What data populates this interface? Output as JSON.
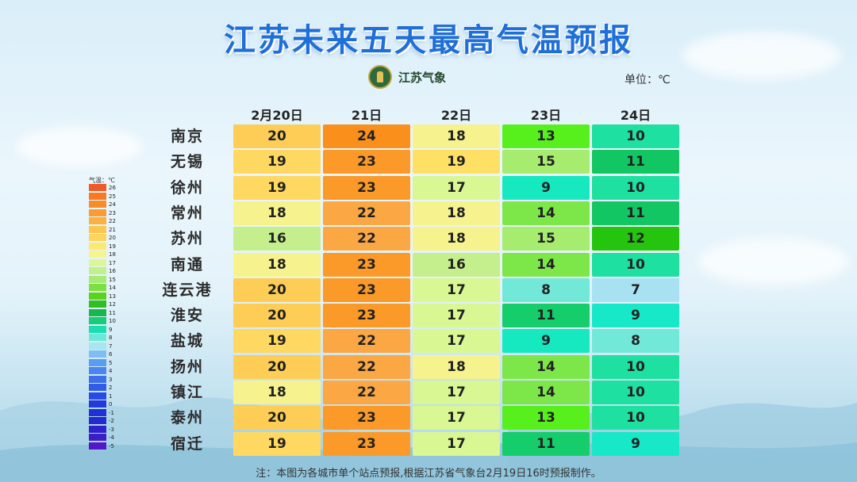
{
  "title": "江苏未来五天最高气温预报",
  "logo_text": "江苏气象",
  "unit_label": "单位：℃",
  "legend_title": "气温：℃",
  "note": "注：本图为各城市单个站点预报,根据江苏省气象台2月19日16时预报制作。",
  "colors": {
    "title": "#1f6fd8"
  },
  "chart_data": {
    "type": "heatmap",
    "title": "江苏未来五天最高气温预报",
    "unit": "℃",
    "columns": [
      "2月20日",
      "21日",
      "22日",
      "23日",
      "24日"
    ],
    "rows": [
      "南京",
      "无锡",
      "徐州",
      "常州",
      "苏州",
      "南通",
      "连云港",
      "淮安",
      "盐城",
      "扬州",
      "镇江",
      "泰州",
      "宿迁"
    ],
    "values": [
      [
        20,
        24,
        18,
        13,
        10
      ],
      [
        19,
        23,
        19,
        15,
        11
      ],
      [
        19,
        23,
        17,
        9,
        10
      ],
      [
        18,
        22,
        18,
        14,
        11
      ],
      [
        16,
        22,
        18,
        15,
        12
      ],
      [
        18,
        23,
        16,
        14,
        10
      ],
      [
        20,
        23,
        17,
        8,
        7
      ],
      [
        20,
        23,
        17,
        11,
        9
      ],
      [
        19,
        22,
        17,
        9,
        8
      ],
      [
        20,
        22,
        18,
        14,
        10
      ],
      [
        18,
        22,
        17,
        14,
        10
      ],
      [
        20,
        23,
        17,
        13,
        10
      ],
      [
        19,
        23,
        17,
        11,
        9
      ]
    ],
    "legend": {
      "labels": [
        "26",
        "25",
        "24",
        "23",
        "22",
        "21",
        "20",
        "19",
        "18",
        "17",
        "16",
        "15",
        "14",
        "13",
        "12",
        "11",
        "10",
        "9",
        "8",
        "7",
        "6",
        "5",
        "4",
        "3",
        "2",
        "1",
        "0",
        "-1",
        "-2",
        "-3",
        "-4",
        "-5"
      ],
      "colors": [
        "#f05a28",
        "#f57a22",
        "#f78d26",
        "#f99c34",
        "#fbb142",
        "#fdc650",
        "#fed55c",
        "#fee970",
        "#f3f590",
        "#dcf69a",
        "#c2f08c",
        "#a8ea75",
        "#7be040",
        "#5ad31a",
        "#2fbf22",
        "#16b84c",
        "#19cc7a",
        "#1bdeb0",
        "#6be9d8",
        "#a6e6ef",
        "#7fbef5",
        "#5a9cf2",
        "#4a86ee",
        "#3c70ea",
        "#2f5be6",
        "#2849e2",
        "#2239dc",
        "#2030d6",
        "#2628d0",
        "#2e22cc",
        "#3c1ec8",
        "#5218c6"
      ]
    },
    "cell_colors": [
      [
        "#fdcd56",
        "#fb8f1c",
        "#f6f38e",
        "#58f01c",
        "#1ee0a0"
      ],
      [
        "#fed860",
        "#fb9a28",
        "#fee065",
        "#a6ec6e",
        "#12c664"
      ],
      [
        "#fed860",
        "#fb9a28",
        "#d9f793",
        "#16e8c0",
        "#1ee0a0"
      ],
      [
        "#f6f38e",
        "#fba744",
        "#f6f38e",
        "#7de74a",
        "#12c664"
      ],
      [
        "#c5ef8c",
        "#fba744",
        "#f6f38e",
        "#a6ec6e",
        "#25c40e"
      ],
      [
        "#f6f38e",
        "#fb9a28",
        "#c5ef8c",
        "#7de74a",
        "#1ee0a0"
      ],
      [
        "#fdcd56",
        "#fb9a28",
        "#d9f793",
        "#72e8d8",
        "#a8e2f2"
      ],
      [
        "#fdcd56",
        "#fb9a28",
        "#d9f793",
        "#15cd6a",
        "#17e8c8"
      ],
      [
        "#fed860",
        "#fba744",
        "#d9f793",
        "#16e8c0",
        "#72e8d8"
      ],
      [
        "#fdcd56",
        "#fba744",
        "#f6f38e",
        "#7de74a",
        "#1ee0a0"
      ],
      [
        "#f6f38e",
        "#fba744",
        "#d9f793",
        "#7de74a",
        "#1ee0a0"
      ],
      [
        "#fdcd56",
        "#fb9a28",
        "#d9f793",
        "#58f01c",
        "#1ee0a0"
      ],
      [
        "#fed860",
        "#fb9a28",
        "#d9f793",
        "#15cd6a",
        "#17e8c8"
      ]
    ]
  }
}
